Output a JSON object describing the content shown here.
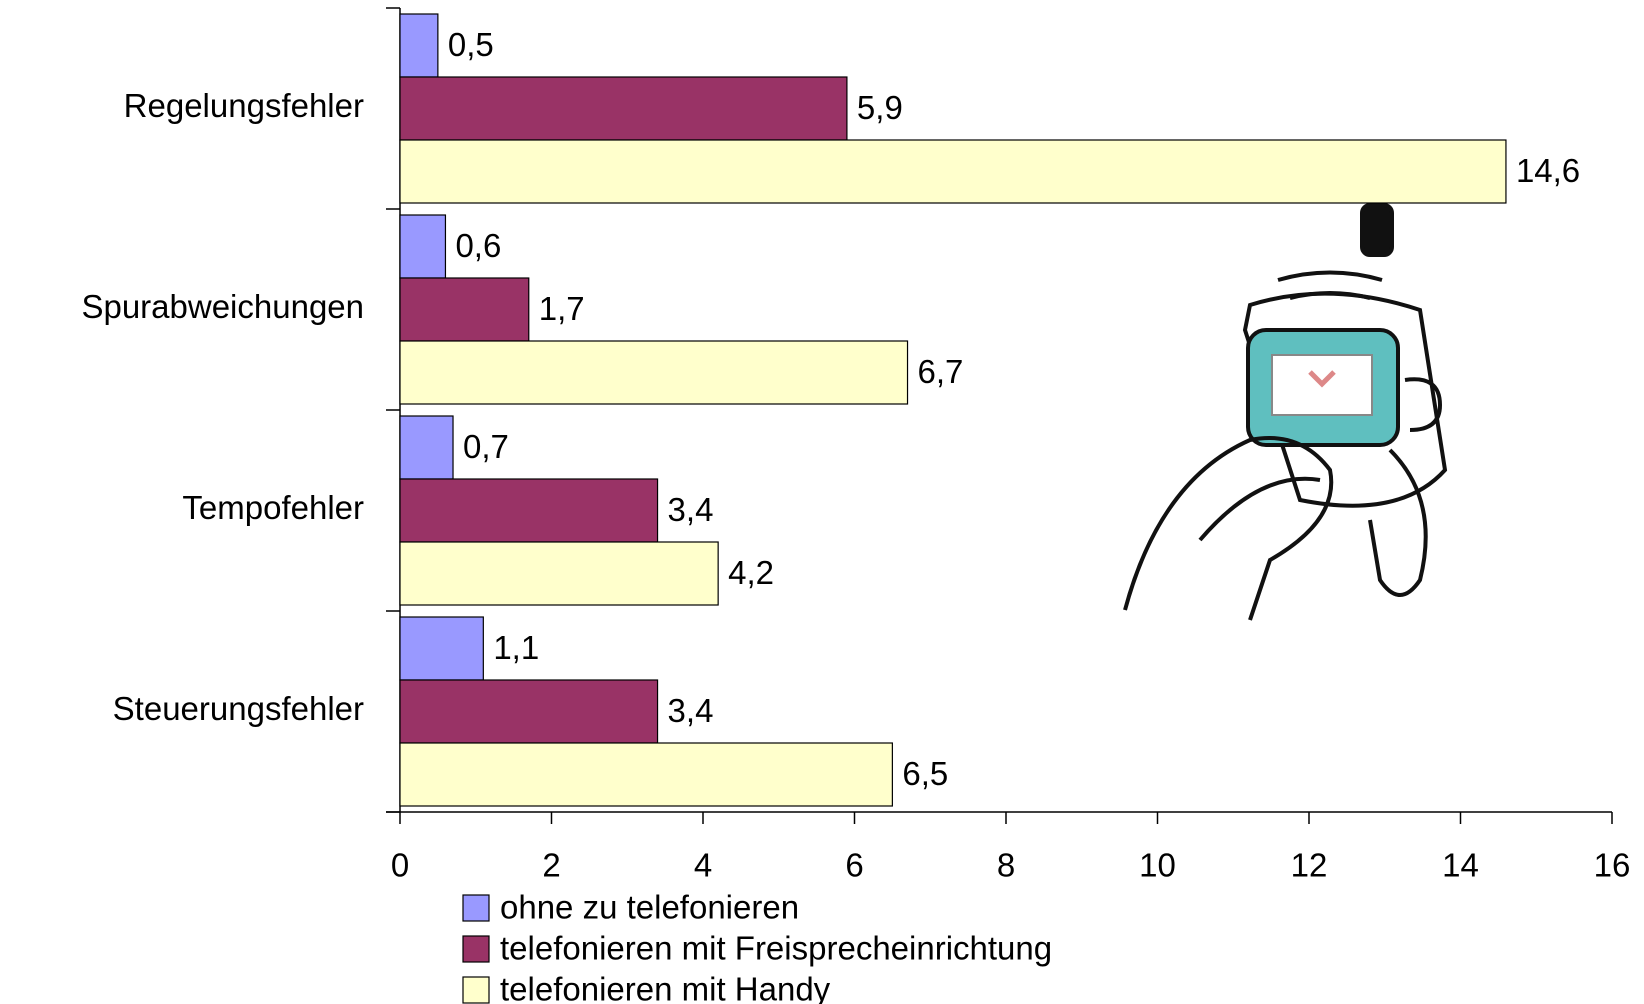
{
  "chart_data": {
    "type": "hbar",
    "categories": [
      "Regelungsfehler",
      "Spurabweichungen",
      "Tempofehler",
      "Steuerungsfehler"
    ],
    "series": [
      {
        "name": "ohne zu telefonieren",
        "color": "#9999ff",
        "values": [
          0.5,
          0.6,
          0.7,
          1.1
        ],
        "value_labels": [
          "0,5",
          "0,6",
          "0,7",
          "1,1"
        ]
      },
      {
        "name": "telefonieren mit Freisprecheinrichtung",
        "color": "#993366",
        "values": [
          5.9,
          1.7,
          3.4,
          3.4
        ],
        "value_labels": [
          "5,9",
          "1,7",
          "3,4",
          "3,4"
        ]
      },
      {
        "name": "telefonieren mit Handy",
        "color": "#ffffcc",
        "values": [
          14.6,
          6.7,
          4.2,
          6.5
        ],
        "value_labels": [
          "14,6",
          "6,7",
          "4,2",
          "6,5"
        ]
      }
    ],
    "xlim": [
      0,
      16
    ],
    "xticks": [
      0,
      2,
      4,
      6,
      8,
      10,
      12,
      14,
      16
    ],
    "legend": "bottom"
  }
}
